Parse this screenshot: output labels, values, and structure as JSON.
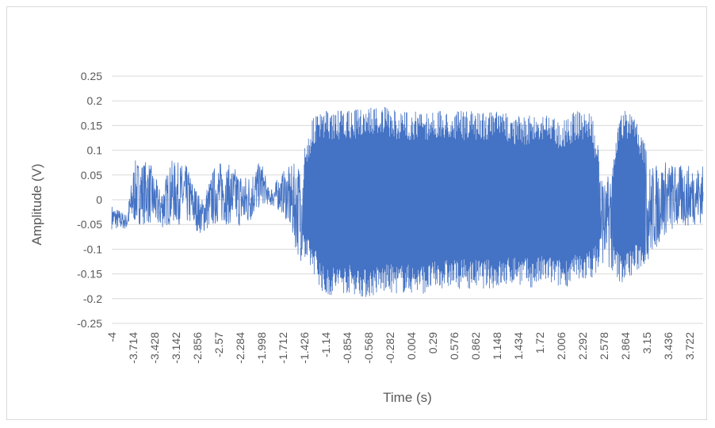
{
  "chart_data": {
    "type": "line",
    "title": "",
    "xlabel": "Time (s)",
    "ylabel": "Amplitude (V)",
    "ylim": [
      -0.25,
      0.25
    ],
    "xlim": [
      -4,
      3.9
    ],
    "y_ticks": [
      "0.25",
      "0.2",
      "0.15",
      "0.1",
      "0.05",
      "0",
      "-0.05",
      "-0.1",
      "-0.15",
      "-0.2",
      "-0.25"
    ],
    "x_ticks": [
      "-4",
      "-3.714",
      "-3.428",
      "-3.142",
      "-2.856",
      "-2.57",
      "-2.284",
      "-1.998",
      "-1.712",
      "-1.426",
      "-1.14",
      "-0.854",
      "-0.568",
      "-0.282",
      "0.004",
      "0.29",
      "0.576",
      "0.862",
      "1.148",
      "1.434",
      "1.72",
      "2.006",
      "2.292",
      "2.578",
      "2.864",
      "3.15",
      "3.436",
      "3.722"
    ],
    "grid": true,
    "legend": "none",
    "series": [
      {
        "color": "#4472c4",
        "envelope": [
          {
            "x": -4.0,
            "min": -0.06,
            "max": -0.01
          },
          {
            "x": -3.8,
            "min": -0.06,
            "max": -0.03
          },
          {
            "x": -3.7,
            "min": -0.05,
            "max": 0.08
          },
          {
            "x": -3.5,
            "min": -0.05,
            "max": 0.08
          },
          {
            "x": -3.35,
            "min": -0.06,
            "max": 0.02
          },
          {
            "x": -3.2,
            "min": -0.05,
            "max": 0.08
          },
          {
            "x": -3.0,
            "min": -0.05,
            "max": 0.07
          },
          {
            "x": -2.8,
            "min": -0.07,
            "max": 0.0
          },
          {
            "x": -2.6,
            "min": -0.05,
            "max": 0.08
          },
          {
            "x": -2.4,
            "min": -0.05,
            "max": 0.07
          },
          {
            "x": -2.2,
            "min": -0.06,
            "max": 0.05
          },
          {
            "x": -2.0,
            "min": -0.01,
            "max": 0.08
          },
          {
            "x": -1.9,
            "min": -0.01,
            "max": 0.02
          },
          {
            "x": -1.7,
            "min": -0.03,
            "max": 0.06
          },
          {
            "x": -1.5,
            "min": -0.12,
            "max": 0.08
          },
          {
            "x": -1.3,
            "min": -0.15,
            "max": 0.17
          },
          {
            "x": -1.15,
            "min": -0.2,
            "max": 0.18
          },
          {
            "x": -1.0,
            "min": -0.19,
            "max": 0.18
          },
          {
            "x": -0.8,
            "min": -0.19,
            "max": 0.18
          },
          {
            "x": -0.6,
            "min": -0.2,
            "max": 0.19
          },
          {
            "x": -0.4,
            "min": -0.19,
            "max": 0.19
          },
          {
            "x": -0.2,
            "min": -0.19,
            "max": 0.18
          },
          {
            "x": 0.0,
            "min": -0.19,
            "max": 0.18
          },
          {
            "x": 0.2,
            "min": -0.19,
            "max": 0.18
          },
          {
            "x": 0.4,
            "min": -0.18,
            "max": 0.18
          },
          {
            "x": 0.6,
            "min": -0.18,
            "max": 0.18
          },
          {
            "x": 0.8,
            "min": -0.18,
            "max": 0.18
          },
          {
            "x": 1.0,
            "min": -0.18,
            "max": 0.18
          },
          {
            "x": 1.2,
            "min": -0.18,
            "max": 0.18
          },
          {
            "x": 1.4,
            "min": -0.17,
            "max": 0.17
          },
          {
            "x": 1.6,
            "min": -0.18,
            "max": 0.17
          },
          {
            "x": 1.8,
            "min": -0.17,
            "max": 0.18
          },
          {
            "x": 2.0,
            "min": -0.18,
            "max": 0.16
          },
          {
            "x": 2.2,
            "min": -0.17,
            "max": 0.18
          },
          {
            "x": 2.4,
            "min": -0.16,
            "max": 0.18
          },
          {
            "x": 2.6,
            "min": -0.13,
            "max": 0.03
          },
          {
            "x": 2.8,
            "min": -0.17,
            "max": 0.18
          },
          {
            "x": 3.0,
            "min": -0.15,
            "max": 0.18
          },
          {
            "x": 3.2,
            "min": -0.12,
            "max": 0.07
          },
          {
            "x": 3.4,
            "min": -0.07,
            "max": 0.08
          },
          {
            "x": 3.6,
            "min": -0.06,
            "max": 0.07
          },
          {
            "x": 3.8,
            "min": -0.05,
            "max": 0.07
          },
          {
            "x": 3.9,
            "min": -0.05,
            "max": 0.07
          }
        ]
      }
    ]
  }
}
